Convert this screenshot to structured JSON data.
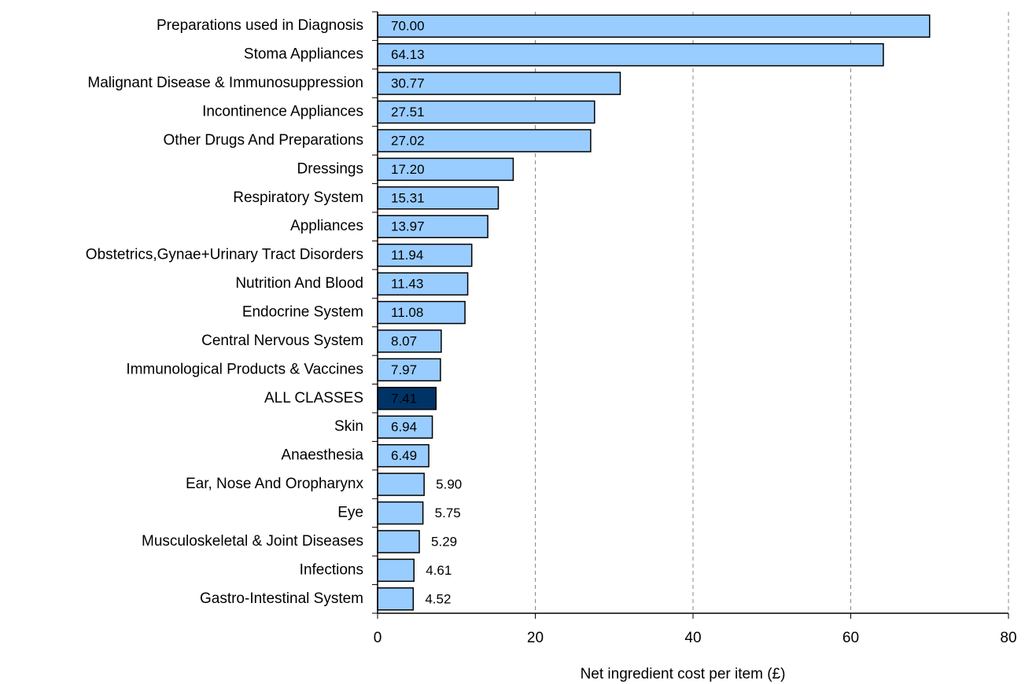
{
  "chart_data": {
    "type": "bar",
    "orientation": "horizontal",
    "x_label": "Net ingredient  cost per item (£)",
    "categories": [
      "Preparations used in Diagnosis",
      "Stoma Appliances",
      "Malignant Disease & Immunosuppression",
      "Incontinence Appliances",
      "Other Drugs And Preparations",
      "Dressings",
      "Respiratory System",
      "Appliances",
      "Obstetrics,Gynae+Urinary Tract Disorders",
      "Nutrition And Blood",
      "Endocrine System",
      "Central Nervous System",
      "Immunological Products & Vaccines",
      "ALL CLASSES",
      "Skin",
      "Anaesthesia",
      "Ear, Nose And Oropharynx",
      "Eye",
      "Musculoskeletal & Joint Diseases",
      "Infections",
      "Gastro-Intestinal System"
    ],
    "values": [
      70,
      64.13,
      30.77,
      27.51,
      27.02,
      17.2,
      15.31,
      13.97,
      11.94,
      11.43,
      11.08,
      8.07,
      7.97,
      7.41,
      6.94,
      6.49,
      5.9,
      5.75,
      5.29,
      4.61,
      4.52
    ],
    "value_labels": [
      "70.00",
      "64.13",
      "30.77",
      "27.51",
      "27.02",
      "17.20",
      "15.31",
      "13.97",
      "11.94",
      "11.43",
      "11.08",
      "8.07",
      "7.97",
      "7.41",
      "6.94",
      "6.49",
      "5.90",
      "5.75",
      "5.29",
      "4.61",
      "4.52"
    ],
    "colors": [
      "#99ccff",
      "#99ccff",
      "#99ccff",
      "#99ccff",
      "#99ccff",
      "#99ccff",
      "#99ccff",
      "#99ccff",
      "#99ccff",
      "#99ccff",
      "#99ccff",
      "#99ccff",
      "#99ccff",
      "#003366",
      "#99ccff",
      "#99ccff",
      "#99ccff",
      "#99ccff",
      "#99ccff",
      "#99ccff",
      "#99ccff"
    ],
    "xlim": [
      0,
      80
    ],
    "xticks": [
      0,
      20,
      40,
      60,
      80
    ],
    "grid": true
  }
}
